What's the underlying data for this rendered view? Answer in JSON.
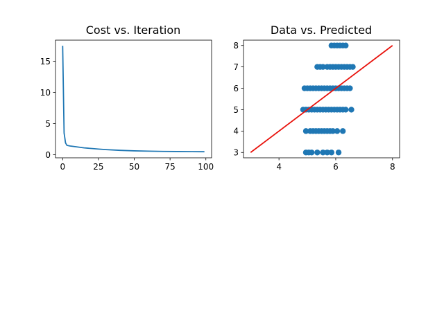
{
  "figure": {
    "background": "#ffffff"
  },
  "chart_data": [
    {
      "type": "line",
      "title": "Cost vs. Iteration",
      "xlabel": "",
      "ylabel": "",
      "xlim": [
        -5,
        104
      ],
      "ylim": [
        -0.5,
        18.4
      ],
      "xticks": [
        0,
        25,
        50,
        75,
        100
      ],
      "yticks": [
        0,
        5,
        10,
        15
      ],
      "grid": false,
      "legend": "none",
      "color": "#1f77b4",
      "series": [
        {
          "x": [
            0,
            1,
            2,
            3,
            5,
            10,
            15,
            20,
            25,
            30,
            40,
            50,
            60,
            70,
            80,
            90,
            99
          ],
          "values": [
            17.5,
            3.5,
            1.9,
            1.5,
            1.4,
            1.25,
            1.1,
            1.0,
            0.9,
            0.82,
            0.7,
            0.62,
            0.57,
            0.53,
            0.51,
            0.49,
            0.48
          ]
        }
      ]
    },
    {
      "type": "scatter",
      "title": "Data vs. Predicted",
      "xlabel": "",
      "ylabel": "",
      "xlim": [
        2.75,
        8.25
      ],
      "ylim": [
        2.75,
        8.25
      ],
      "xticks": [
        4,
        6,
        8
      ],
      "yticks": [
        3,
        4,
        5,
        6,
        7,
        8
      ],
      "grid": false,
      "legend": "none",
      "point_color": "#1f77b4",
      "line_color": "#e8120c",
      "line": {
        "x": [
          3,
          8
        ],
        "y": [
          3,
          8
        ]
      },
      "series": [
        {
          "points": [
            [
              4.95,
              3
            ],
            [
              5.05,
              3
            ],
            [
              5.15,
              3
            ],
            [
              5.35,
              3
            ],
            [
              5.55,
              3
            ],
            [
              5.7,
              3
            ],
            [
              5.85,
              3
            ],
            [
              6.1,
              3
            ],
            [
              4.95,
              4
            ],
            [
              5.1,
              4
            ],
            [
              5.2,
              4
            ],
            [
              5.3,
              4
            ],
            [
              5.4,
              4
            ],
            [
              5.5,
              4
            ],
            [
              5.6,
              4
            ],
            [
              5.7,
              4
            ],
            [
              5.8,
              4
            ],
            [
              5.9,
              4
            ],
            [
              6.05,
              4
            ],
            [
              6.25,
              4
            ],
            [
              4.85,
              5
            ],
            [
              4.95,
              5
            ],
            [
              5.05,
              5
            ],
            [
              5.15,
              5
            ],
            [
              5.25,
              5
            ],
            [
              5.35,
              5
            ],
            [
              5.45,
              5
            ],
            [
              5.55,
              5
            ],
            [
              5.65,
              5
            ],
            [
              5.75,
              5
            ],
            [
              5.85,
              5
            ],
            [
              5.95,
              5
            ],
            [
              6.05,
              5
            ],
            [
              6.15,
              5
            ],
            [
              6.25,
              5
            ],
            [
              6.35,
              5
            ],
            [
              6.55,
              5
            ],
            [
              4.9,
              6
            ],
            [
              5.0,
              6
            ],
            [
              5.1,
              6
            ],
            [
              5.2,
              6
            ],
            [
              5.3,
              6
            ],
            [
              5.4,
              6
            ],
            [
              5.5,
              6
            ],
            [
              5.6,
              6
            ],
            [
              5.7,
              6
            ],
            [
              5.8,
              6
            ],
            [
              5.9,
              6
            ],
            [
              6.0,
              6
            ],
            [
              6.1,
              6
            ],
            [
              6.2,
              6
            ],
            [
              6.3,
              6
            ],
            [
              6.4,
              6
            ],
            [
              6.5,
              6
            ],
            [
              5.35,
              7
            ],
            [
              5.45,
              7
            ],
            [
              5.55,
              7
            ],
            [
              5.7,
              7
            ],
            [
              5.8,
              7
            ],
            [
              5.9,
              7
            ],
            [
              6.0,
              7
            ],
            [
              6.1,
              7
            ],
            [
              6.2,
              7
            ],
            [
              6.3,
              7
            ],
            [
              6.4,
              7
            ],
            [
              6.5,
              7
            ],
            [
              6.6,
              7
            ],
            [
              5.85,
              8
            ],
            [
              5.95,
              8
            ],
            [
              6.05,
              8
            ],
            [
              6.15,
              8
            ],
            [
              6.25,
              8
            ],
            [
              6.35,
              8
            ]
          ]
        }
      ]
    }
  ]
}
